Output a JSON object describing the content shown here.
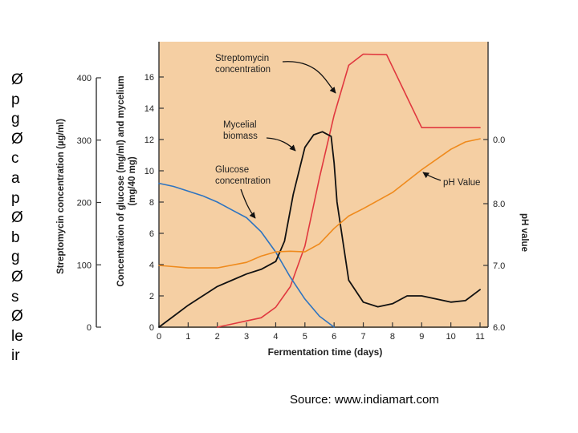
{
  "slide": {
    "bullet_fragments": [
      "Ø",
      "p",
      "g",
      "Ø",
      "c",
      "a",
      "p",
      "Ø",
      "b",
      "g",
      "Ø",
      "s",
      "Ø",
      "le",
      "ir"
    ],
    "source": "Source:  www.indiamart.com"
  },
  "colors": {
    "plot_background": "#f5cfa3",
    "streptomycin": "#e0383f",
    "glucose": "#2e74c0",
    "mycelium": "#111111",
    "ph": "#ef8a1c",
    "axis": "#333333"
  },
  "chart_data": {
    "type": "line",
    "title": "",
    "xlabel": "Fermentation time (days)",
    "xlim": [
      0,
      11
    ],
    "xticks": [
      "0",
      "1",
      "2",
      "3",
      "4",
      "5",
      "6",
      "7",
      "8",
      "9",
      "10",
      "11"
    ],
    "y_axes": {
      "streptomycin": {
        "label": "Streptomycin concentration (µg/ml)",
        "lim": [
          0,
          400
        ],
        "ticks": [
          "0",
          "100",
          "200",
          "300",
          "400"
        ]
      },
      "glucose_mycelium": {
        "label": "Concentration of glucose (mg/ml) and mycelium (mg/40 mg)",
        "lim": [
          0,
          18
        ],
        "ticks": [
          "0",
          "2",
          "4",
          "6",
          "8",
          "10",
          "12",
          "14",
          "16"
        ]
      },
      "ph": {
        "label": "pH value",
        "lim": [
          6.0,
          9.0
        ],
        "ticks": [
          "6.0",
          "7.0",
          "8.0",
          "0.0"
        ]
      }
    },
    "annotations": {
      "streptomycin": "Streptomycin\nconcentration",
      "mycelium": "Mycelial\nbiomass",
      "glucose": "Glucose\nconcentration",
      "ph": "pH Value"
    },
    "series": [
      {
        "key": "streptomycin",
        "axis": "streptomycin",
        "x": [
          2.0,
          2.5,
          3.0,
          3.5,
          4.0,
          4.5,
          5.0,
          5.5,
          6.0,
          6.5,
          7.0,
          7.8,
          9.0,
          10.0,
          11.0
        ],
        "y": [
          0,
          5,
          10,
          15,
          32,
          65,
          130,
          240,
          340,
          420,
          438,
          437,
          320,
          320,
          320
        ]
      },
      {
        "key": "glucose",
        "axis": "glucose_mycelium",
        "x": [
          0,
          0.5,
          1.0,
          1.5,
          2.0,
          2.5,
          3.0,
          3.5,
          4.0,
          4.5,
          5.0,
          5.5,
          6.0
        ],
        "y": [
          9.2,
          9.0,
          8.7,
          8.4,
          8.0,
          7.5,
          7.0,
          6.1,
          4.8,
          3.2,
          1.8,
          0.7,
          0
        ]
      },
      {
        "key": "mycelium",
        "axis": "glucose_mycelium",
        "x": [
          0,
          0.5,
          1.0,
          1.5,
          2.0,
          2.5,
          3.0,
          3.5,
          4.0,
          4.3,
          4.6,
          5.0,
          5.3,
          5.6,
          5.9,
          6.0,
          6.1,
          6.5,
          7.0,
          7.5,
          8.0,
          8.5,
          9.0,
          9.5,
          10.0,
          10.5,
          11.0
        ],
        "y": [
          0,
          0.7,
          1.4,
          2.0,
          2.6,
          3.0,
          3.4,
          3.7,
          4.2,
          5.5,
          8.5,
          11.5,
          12.3,
          12.5,
          12.2,
          10.5,
          8.0,
          3.0,
          1.6,
          1.3,
          1.5,
          2.0,
          2.0,
          1.8,
          1.6,
          1.7,
          2.4
        ]
      },
      {
        "key": "ph",
        "axis": "ph",
        "x": [
          0,
          0.5,
          1.0,
          2.0,
          3.0,
          3.5,
          4.0,
          4.5,
          5.0,
          5.5,
          6.0,
          6.5,
          7.0,
          8.0,
          9.0,
          10.0,
          10.5,
          11.0
        ],
        "y": [
          7.0,
          6.98,
          6.96,
          6.96,
          7.05,
          7.15,
          7.22,
          7.23,
          7.22,
          7.35,
          7.6,
          7.8,
          7.92,
          8.18,
          8.55,
          8.88,
          9.0,
          9.05
        ]
      }
    ]
  }
}
